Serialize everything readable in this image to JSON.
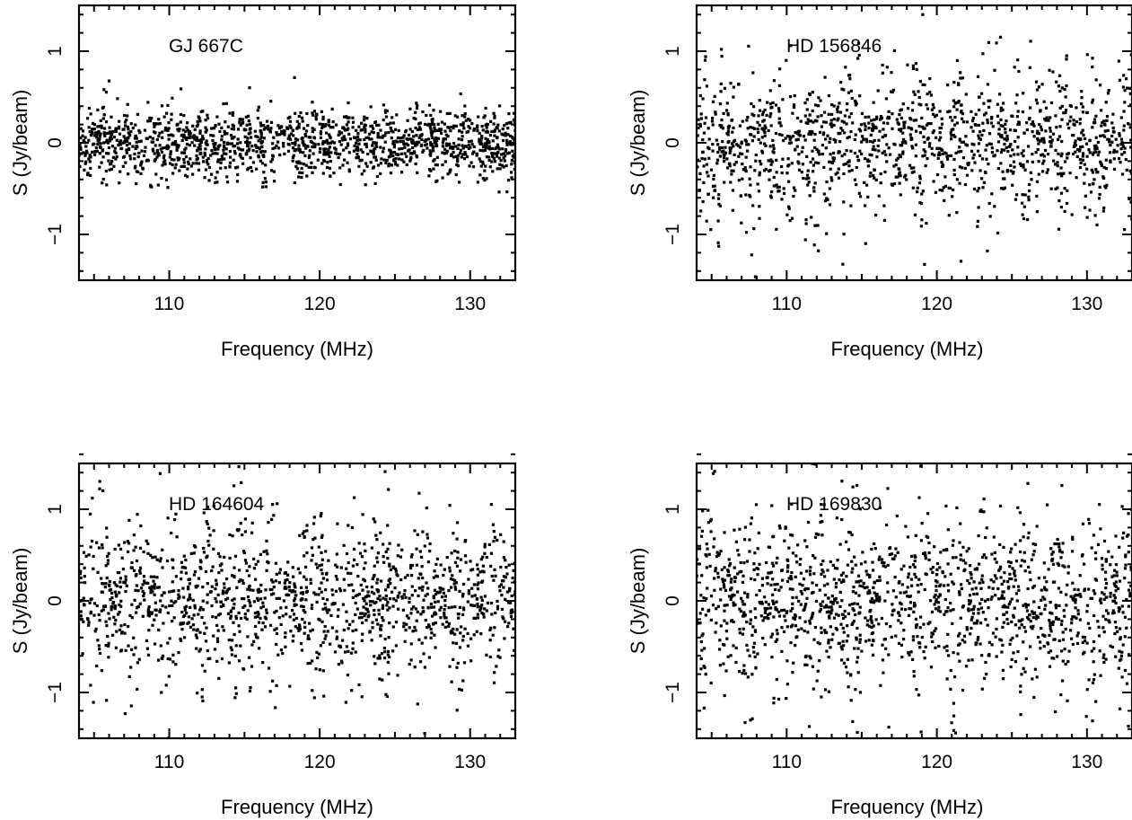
{
  "figure": {
    "background": "#ffffff",
    "ink": "#000000"
  },
  "chart_data": [
    {
      "type": "scatter",
      "panel": "top-left",
      "title": "GJ 667C",
      "xlabel": "Frequency (MHz)",
      "ylabel": "S (Jy/beam)",
      "xlim": [
        104,
        133
      ],
      "ylim": [
        -1.5,
        1.5
      ],
      "xticks": [
        110,
        120,
        130
      ],
      "yticks": [
        -1,
        0,
        1
      ],
      "ytick_labels": [
        "−1",
        "0",
        "1"
      ],
      "grid": false,
      "legend": "none",
      "noise": {
        "center": 0.0,
        "sigma_start": 0.19,
        "sigma_end": 0.19,
        "striped": false,
        "n_points": 1500,
        "seed": 11
      }
    },
    {
      "type": "scatter",
      "panel": "top-right",
      "title": "HD 156846",
      "xlabel": "Frequency (MHz)",
      "ylabel": "S (Jy/beam)",
      "xlim": [
        104,
        133
      ],
      "ylim": [
        -1.5,
        1.5
      ],
      "xticks": [
        110,
        120,
        130
      ],
      "yticks": [
        -1,
        0,
        1
      ],
      "ytick_labels": [
        "−1",
        "0",
        "1"
      ],
      "grid": false,
      "legend": "none",
      "noise": {
        "center": 0.0,
        "sigma_start": 0.4,
        "sigma_end": 0.3,
        "striped": true,
        "band_period_mhz": 2.3,
        "n_points": 1400,
        "seed": 23
      }
    },
    {
      "type": "scatter",
      "panel": "bottom-left",
      "title": "HD 164604",
      "xlabel": "Frequency (MHz)",
      "ylabel": "S (Jy/beam)",
      "xlim": [
        104,
        133
      ],
      "ylim": [
        -1.5,
        1.5
      ],
      "xticks": [
        110,
        120,
        130
      ],
      "yticks": [
        -1,
        0,
        1
      ],
      "ytick_labels": [
        "−1",
        "0",
        "1"
      ],
      "grid": false,
      "legend": "none",
      "noise": {
        "center": 0.0,
        "sigma_start": 0.4,
        "sigma_end": 0.33,
        "striped": true,
        "band_period_mhz": 2.4,
        "n_points": 1400,
        "seed": 37
      }
    },
    {
      "type": "scatter",
      "panel": "bottom-right",
      "title": "HD 169830",
      "xlabel": "Frequency (MHz)",
      "ylabel": "S (Jy/beam)",
      "xlim": [
        104,
        133
      ],
      "ylim": [
        -1.5,
        1.5
      ],
      "xticks": [
        110,
        120,
        130
      ],
      "yticks": [
        -1,
        0,
        1
      ],
      "ytick_labels": [
        "−1",
        "0",
        "1"
      ],
      "grid": false,
      "legend": "none",
      "noise": {
        "center": 0.0,
        "sigma_start": 0.45,
        "sigma_end": 0.38,
        "striped": true,
        "band_period_mhz": 2.3,
        "n_points": 1450,
        "seed": 53
      }
    }
  ]
}
